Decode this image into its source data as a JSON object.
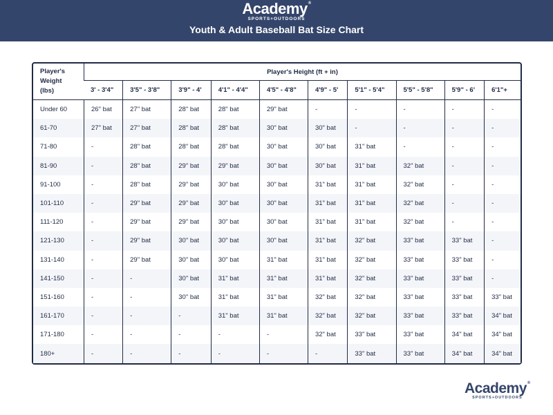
{
  "brand": {
    "name": "Academy",
    "tagline": "SPORTS+OUTDOORS",
    "reg": "®"
  },
  "title": "Youth & Adult Baseball Bat Size Chart",
  "colors": {
    "banner": "#34456b",
    "border": "#1f2a44",
    "alt_row": "#f3f5f9"
  },
  "chart_data": {
    "type": "table",
    "title": "Youth & Adult Baseball Bat Size Chart",
    "row_header": "Player's Weight (lbs)",
    "column_group_header": "Player's Height (ft + in)",
    "columns": [
      "3' - 3'4\"",
      "3'5\" - 3'8\"",
      "3'9\" - 4'",
      "4'1\" - 4'4\"",
      "4'5\" - 4'8\"",
      "4'9\" - 5'",
      "5'1\" - 5'4\"",
      "5'5\" - 5'8\"",
      "5'9\" - 6'",
      "6'1\"+"
    ],
    "rows": [
      {
        "weight": "Under 60",
        "cells": [
          "26\" bat",
          "27\" bat",
          "28\" bat",
          "28\" bat",
          "29\" bat",
          "-",
          "-",
          "-",
          "-",
          "-"
        ]
      },
      {
        "weight": "61-70",
        "cells": [
          "27\" bat",
          "27\" bat",
          "28\" bat",
          "28\" bat",
          "30\" bat",
          "30\" bat",
          "-",
          "-",
          "-",
          "-"
        ]
      },
      {
        "weight": "71-80",
        "cells": [
          "-",
          "28\" bat",
          "28\" bat",
          "28\" bat",
          "30\" bat",
          "30\" bat",
          "31\" bat",
          "-",
          "-",
          "-"
        ]
      },
      {
        "weight": "81-90",
        "cells": [
          "-",
          "28\" bat",
          "29\" bat",
          "29\" bat",
          "30\" bat",
          "30\" bat",
          "31\" bat",
          "32\" bat",
          "-",
          "-"
        ]
      },
      {
        "weight": "91-100",
        "cells": [
          "-",
          "28\" bat",
          "29\" bat",
          "30\" bat",
          "30\" bat",
          "31\" bat",
          "31\" bat",
          "32\" bat",
          "-",
          "-"
        ]
      },
      {
        "weight": "101-110",
        "cells": [
          "-",
          "29\" bat",
          "29\" bat",
          "30\" bat",
          "30\" bat",
          "31\" bat",
          "31\" bat",
          "32\" bat",
          "-",
          "-"
        ]
      },
      {
        "weight": "111-120",
        "cells": [
          "-",
          "29\" bat",
          "29\" bat",
          "30\" bat",
          "30\" bat",
          "31\" bat",
          "31\" bat",
          "32\" bat",
          "-",
          "-"
        ]
      },
      {
        "weight": "121-130",
        "cells": [
          "-",
          "29\" bat",
          "30\" bat",
          "30\" bat",
          "30\" bat",
          "31\" bat",
          "32\" bat",
          "33\" bat",
          "33\" bat",
          "-"
        ]
      },
      {
        "weight": "131-140",
        "cells": [
          "-",
          "29\" bat",
          "30\" bat",
          "30\" bat",
          "31\" bat",
          "31\" bat",
          "32\" bat",
          "33\" bat",
          "33\" bat",
          "-"
        ]
      },
      {
        "weight": "141-150",
        "cells": [
          "-",
          "-",
          "30\" bat",
          "31\" bat",
          "31\" bat",
          "31\" bat",
          "32\" bat",
          "33\" bat",
          "33\" bat",
          "-"
        ]
      },
      {
        "weight": "151-160",
        "cells": [
          "-",
          "-",
          "30\" bat",
          "31\" bat",
          "31\" bat",
          "32\" bat",
          "32\" bat",
          "33\" bat",
          "33\" bat",
          "33\" bat"
        ]
      },
      {
        "weight": "161-170",
        "cells": [
          "-",
          "-",
          "-",
          "31\" bat",
          "31\" bat",
          "32\" bat",
          "32\" bat",
          "33\" bat",
          "33\" bat",
          "34\" bat"
        ]
      },
      {
        "weight": "171-180",
        "cells": [
          "-",
          "-",
          "-",
          "-",
          "-",
          "32\" bat",
          "33\" bat",
          "33\" bat",
          "34\" bat",
          "34\" bat"
        ]
      },
      {
        "weight": "180+",
        "cells": [
          "-",
          "-",
          "-",
          "-",
          "-",
          "-",
          "33\" bat",
          "33\" bat",
          "34\" bat",
          "34\" bat"
        ]
      }
    ]
  }
}
